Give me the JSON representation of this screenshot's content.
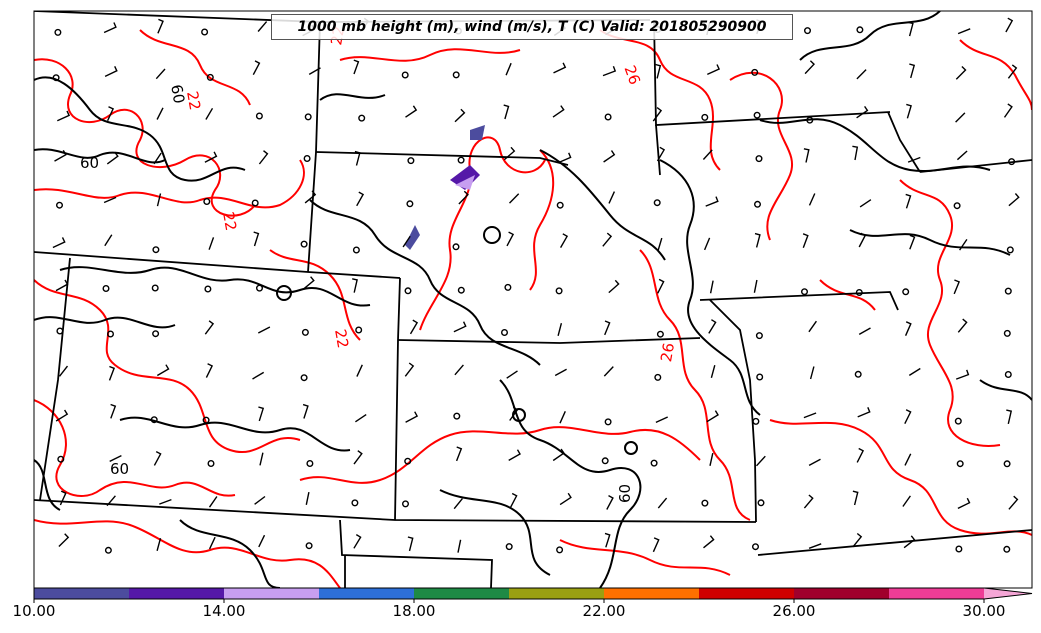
{
  "title": "1000 mb height (m), wind (m/s), T (C) Valid: 201805290900",
  "colorbar": {
    "colors": [
      "#4c4c9e",
      "#5518a8",
      "#c79ef0",
      "#2d6fd8",
      "#1e8a45",
      "#9aa012",
      "#ff7000",
      "#d00000",
      "#a0002c",
      "#ee3c96",
      "#f5a6d6"
    ],
    "labels": [
      "10.00",
      "14.00",
      "18.00",
      "22.00",
      "26.00",
      "30.00"
    ]
  },
  "contours": {
    "height_labels": [
      "60",
      "60",
      "60",
      "60"
    ],
    "temperature_labels": [
      "22",
      "22",
      "22",
      "26",
      "26",
      "22"
    ],
    "height_color": "#000000",
    "temperature_color": "#ff0000"
  }
}
